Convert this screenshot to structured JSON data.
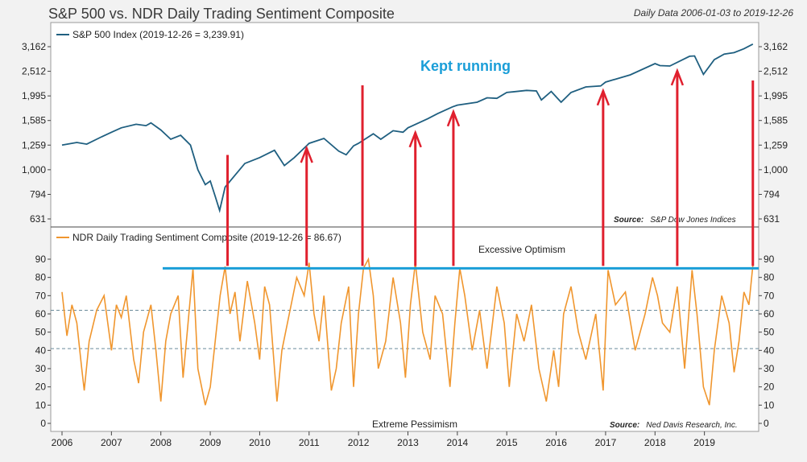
{
  "chart_data": {
    "type": "line",
    "title": "S&P 500 vs. NDR Daily Trading Sentiment Composite",
    "subtitle": "Daily Data 2006-01-03 to 2019-12-26",
    "x_tick_labels": [
      "2006",
      "2007",
      "2008",
      "2009",
      "2010",
      "2011",
      "2012",
      "2013",
      "2014",
      "2015",
      "2016",
      "2017",
      "2018",
      "2019"
    ],
    "x_range": [
      2006.0,
      2020.0
    ],
    "top_panel": {
      "legend": "S&P 500 Index (2019-12-26 = 3,239.91)",
      "scale": "log",
      "y_ticks": [
        631,
        794,
        1000,
        1259,
        1585,
        1995,
        2512,
        3162
      ],
      "y_tick_labels": [
        "631",
        "794",
        "1,000",
        "1,259",
        "1,585",
        "1,995",
        "2,512",
        "3,162"
      ],
      "source_label": "Source:",
      "source": "S&P Dow Jones Indices",
      "color": "#1f5f80",
      "series": [
        {
          "name": "S&P 500 Index",
          "x": [
            2006.0,
            2006.3,
            2006.5,
            2006.8,
            2007.0,
            2007.2,
            2007.5,
            2007.7,
            2007.8,
            2008.0,
            2008.2,
            2008.4,
            2008.6,
            2008.75,
            2008.9,
            2009.0,
            2009.1,
            2009.19,
            2009.3,
            2009.5,
            2009.7,
            2010.0,
            2010.3,
            2010.5,
            2010.7,
            2011.0,
            2011.3,
            2011.6,
            2011.75,
            2011.9,
            2012.0,
            2012.3,
            2012.45,
            2012.7,
            2012.9,
            2013.0,
            2013.4,
            2013.6,
            2013.9,
            2014.0,
            2014.4,
            2014.6,
            2014.8,
            2015.0,
            2015.4,
            2015.6,
            2015.7,
            2015.9,
            2016.1,
            2016.3,
            2016.6,
            2016.9,
            2017.0,
            2017.5,
            2018.0,
            2018.1,
            2018.3,
            2018.7,
            2018.8,
            2018.98,
            2019.2,
            2019.4,
            2019.6,
            2019.8,
            2019.98
          ],
          "y": [
            1259,
            1290,
            1270,
            1360,
            1420,
            1480,
            1530,
            1510,
            1550,
            1450,
            1330,
            1380,
            1260,
            1000,
            870,
            900,
            780,
            683,
            850,
            950,
            1060,
            1120,
            1200,
            1040,
            1120,
            1280,
            1340,
            1190,
            1150,
            1250,
            1280,
            1400,
            1330,
            1440,
            1420,
            1480,
            1610,
            1690,
            1800,
            1830,
            1880,
            1960,
            1950,
            2060,
            2100,
            2090,
            1920,
            2080,
            1880,
            2060,
            2170,
            2190,
            2270,
            2430,
            2700,
            2650,
            2640,
            2890,
            2900,
            2440,
            2800,
            2950,
            2990,
            3100,
            3239.91
          ]
        }
      ]
    },
    "bottom_panel": {
      "legend": "NDR Daily Trading Sentiment Composite (2019-12-26 = 86.67)",
      "y_ticks": [
        0,
        10,
        20,
        30,
        40,
        50,
        60,
        70,
        80,
        90
      ],
      "y_tick_labels": [
        "0",
        "10",
        "20",
        "30",
        "40",
        "50",
        "60",
        "70",
        "80",
        "90"
      ],
      "y_range": [
        0,
        90
      ],
      "reference_lines": [
        62,
        41
      ],
      "zone_top_label": "Excessive Optimism",
      "zone_bottom_label": "Extreme Pessimism",
      "source_label": "Source:",
      "source": "Ned Davis Research, Inc.",
      "color": "#f0962e",
      "series": [
        {
          "name": "NDR Daily Trading Sentiment Composite",
          "x": [
            2006.0,
            2006.1,
            2006.2,
            2006.3,
            2006.4,
            2006.45,
            2006.55,
            2006.7,
            2006.85,
            2007.0,
            2007.1,
            2007.2,
            2007.3,
            2007.45,
            2007.55,
            2007.65,
            2007.8,
            2007.9,
            2008.0,
            2008.1,
            2008.2,
            2008.35,
            2008.45,
            2008.55,
            2008.65,
            2008.75,
            2008.9,
            2009.0,
            2009.1,
            2009.2,
            2009.3,
            2009.4,
            2009.5,
            2009.6,
            2009.75,
            2009.9,
            2010.0,
            2010.1,
            2010.2,
            2010.3,
            2010.35,
            2010.45,
            2010.6,
            2010.75,
            2010.9,
            2011.0,
            2011.1,
            2011.2,
            2011.3,
            2011.45,
            2011.55,
            2011.65,
            2011.8,
            2011.9,
            2012.0,
            2012.1,
            2012.2,
            2012.3,
            2012.4,
            2012.55,
            2012.7,
            2012.85,
            2012.95,
            2013.05,
            2013.15,
            2013.3,
            2013.45,
            2013.55,
            2013.7,
            2013.85,
            2013.95,
            2014.05,
            2014.15,
            2014.3,
            2014.45,
            2014.6,
            2014.8,
            2014.95,
            2015.05,
            2015.2,
            2015.35,
            2015.5,
            2015.65,
            2015.8,
            2015.95,
            2016.05,
            2016.15,
            2016.3,
            2016.45,
            2016.6,
            2016.8,
            2016.95,
            2017.05,
            2017.2,
            2017.4,
            2017.6,
            2017.8,
            2017.95,
            2018.05,
            2018.15,
            2018.3,
            2018.45,
            2018.6,
            2018.75,
            2018.85,
            2018.98,
            2019.1,
            2019.2,
            2019.35,
            2019.5,
            2019.6,
            2019.7,
            2019.8,
            2019.9,
            2019.98
          ],
          "y": [
            72,
            48,
            65,
            55,
            30,
            18,
            45,
            62,
            70,
            40,
            65,
            58,
            70,
            35,
            22,
            50,
            65,
            40,
            12,
            45,
            60,
            70,
            25,
            55,
            85,
            30,
            10,
            20,
            45,
            70,
            86,
            60,
            72,
            45,
            78,
            55,
            35,
            75,
            65,
            30,
            12,
            40,
            60,
            80,
            70,
            88,
            60,
            45,
            70,
            18,
            30,
            55,
            75,
            20,
            60,
            85,
            90,
            70,
            30,
            45,
            80,
            55,
            25,
            65,
            88,
            50,
            35,
            70,
            60,
            20,
            55,
            85,
            70,
            40,
            62,
            30,
            75,
            55,
            20,
            60,
            45,
            65,
            30,
            12,
            40,
            20,
            60,
            75,
            50,
            35,
            60,
            18,
            84,
            65,
            72,
            40,
            60,
            80,
            70,
            55,
            50,
            75,
            30,
            84,
            60,
            20,
            10,
            40,
            70,
            55,
            28,
            45,
            72,
            65,
            86.67
          ]
        }
      ]
    },
    "annotation": "Kept running",
    "annotation_color": "#1a9ed8",
    "marker_color": "#e0202e",
    "threshold_line_color": "#1a9ed8",
    "threshold_value": 85,
    "marker_dates": [
      2009.35,
      2010.95,
      2012.08,
      2013.15,
      2013.92,
      2016.95,
      2018.45,
      2019.98
    ],
    "arrow_flags": [
      false,
      true,
      false,
      true,
      true,
      true,
      true,
      false
    ]
  }
}
